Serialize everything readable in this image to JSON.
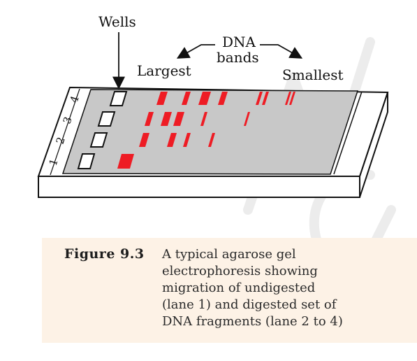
{
  "diagram": {
    "labels": {
      "wells": "Wells",
      "dna_bands_line1": "DNA",
      "dna_bands_line2": "bands",
      "largest": "Largest",
      "smallest": "Smallest"
    },
    "lane_numbers": [
      "1",
      "2",
      "3",
      "4"
    ],
    "colors": {
      "gel": "#c8c8c8",
      "band": "#ee1c24",
      "caption_bg": "#fdf2e6",
      "watermark": "#ebebeb"
    }
  },
  "caption": {
    "label": "Figure 9.3",
    "lines": [
      "A typical agarose gel",
      "electrophoresis showing",
      "migration of undigested",
      "(lane 1) and digested set of",
      "DNA fragments (lane 2 to 4)"
    ]
  }
}
